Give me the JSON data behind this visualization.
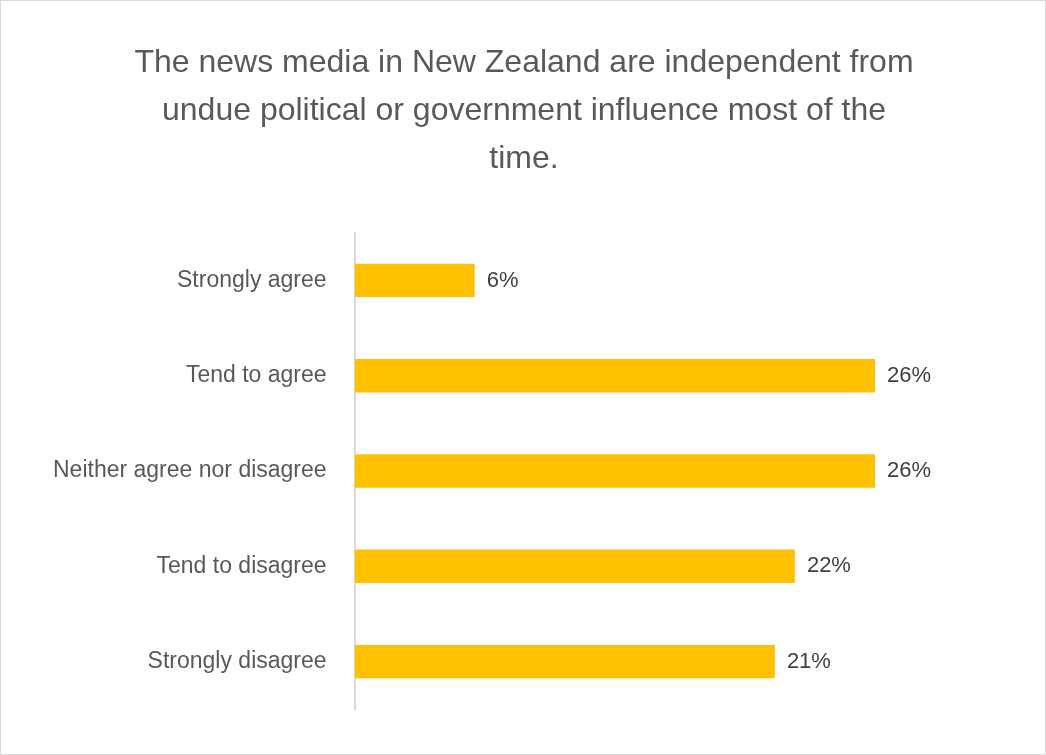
{
  "chart_data": {
    "type": "bar",
    "orientation": "horizontal",
    "title": "The news media in New Zealand are independent from undue political or government influence most of the time.",
    "categories": [
      "Strongly agree",
      "Tend to agree",
      "Neither agree nor disagree",
      "Tend to disagree",
      "Strongly disagree"
    ],
    "values": [
      6,
      26,
      26,
      22,
      21
    ],
    "value_labels": [
      "6%",
      "26%",
      "26%",
      "22%",
      "21%"
    ],
    "color": "#ffc000",
    "tick_labels": "y"
  }
}
